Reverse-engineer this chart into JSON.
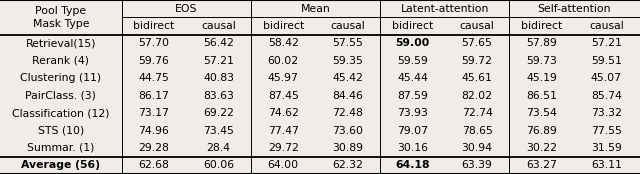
{
  "col_groups": [
    {
      "label": "EOS",
      "cols": [
        "bidirect",
        "causal"
      ]
    },
    {
      "label": "Mean",
      "cols": [
        "bidirect",
        "causal"
      ]
    },
    {
      "label": "Latent-attention",
      "cols": [
        "bidirect",
        "causal"
      ]
    },
    {
      "label": "Self-attention",
      "cols": [
        "bidirect",
        "causal"
      ]
    }
  ],
  "rows": [
    {
      "label": "Retrieval(15)",
      "values": [
        "57.70",
        "56.42",
        "58.42",
        "57.55",
        "59.00",
        "57.65",
        "57.89",
        "57.21"
      ],
      "bold_idx": [
        4
      ]
    },
    {
      "label": "Rerank (4)",
      "values": [
        "59.76",
        "57.21",
        "60.02",
        "59.35",
        "59.59",
        "59.72",
        "59.73",
        "59.51"
      ],
      "bold_idx": []
    },
    {
      "label": "Clustering (11)",
      "values": [
        "44.75",
        "40.83",
        "45.97",
        "45.42",
        "45.44",
        "45.61",
        "45.19",
        "45.07"
      ],
      "bold_idx": []
    },
    {
      "label": "PairClass. (3)",
      "values": [
        "86.17",
        "83.63",
        "87.45",
        "84.46",
        "87.59",
        "82.02",
        "86.51",
        "85.74"
      ],
      "bold_idx": []
    },
    {
      "label": "Classification (12)",
      "values": [
        "73.17",
        "69.22",
        "74.62",
        "72.48",
        "73.93",
        "72.74",
        "73.54",
        "73.32"
      ],
      "bold_idx": []
    },
    {
      "label": "STS (10)",
      "values": [
        "74.96",
        "73.45",
        "77.47",
        "73.60",
        "79.07",
        "78.65",
        "76.89",
        "77.55"
      ],
      "bold_idx": []
    },
    {
      "label": "Summar. (1)",
      "values": [
        "29.28",
        "28.4",
        "29.72",
        "30.89",
        "30.16",
        "30.94",
        "30.22",
        "31.59"
      ],
      "bold_idx": []
    },
    {
      "label": "Average (56)",
      "values": [
        "62.68",
        "60.06",
        "64.00",
        "62.32",
        "64.18",
        "63.39",
        "63.27",
        "63.11"
      ],
      "bold_idx": [
        4
      ],
      "bold_label": true
    }
  ],
  "bg_color": "#f0ede8",
  "font_size": 7.8,
  "figsize": [
    6.4,
    1.74
  ]
}
